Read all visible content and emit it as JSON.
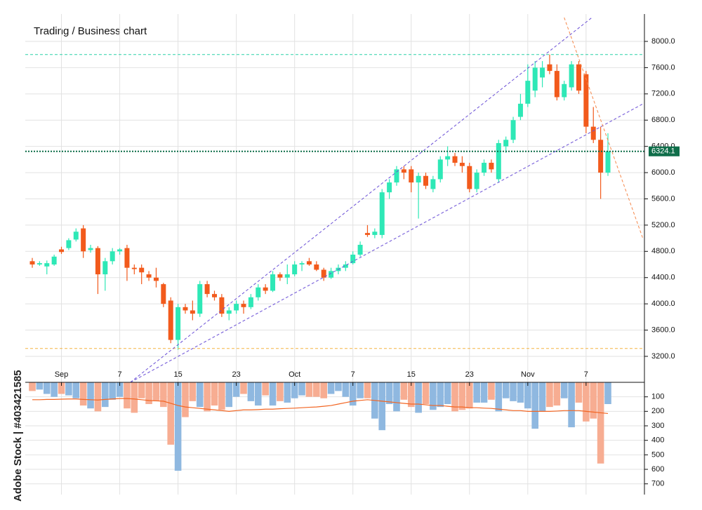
{
  "chart_data": {
    "type": "candlestick",
    "title": "Trading / Business chart",
    "watermark": "Adobe Stock | #403421585",
    "categories": [
      null,
      null,
      null,
      null,
      "Sep",
      null,
      null,
      null,
      null,
      null,
      null,
      null,
      "7",
      null,
      null,
      null,
      null,
      null,
      null,
      null,
      "15",
      null,
      null,
      null,
      null,
      null,
      null,
      null,
      "23",
      null,
      null,
      null,
      null,
      null,
      null,
      null,
      "Oct",
      null,
      null,
      null,
      null,
      null,
      null,
      null,
      "7",
      null,
      null,
      null,
      null,
      null,
      null,
      null,
      "15",
      null,
      null,
      null,
      null,
      null,
      null,
      null,
      "23",
      null,
      null,
      null,
      null,
      null,
      null,
      null,
      "Nov",
      null,
      null,
      null,
      null,
      null,
      null,
      null,
      "7",
      null,
      null,
      null
    ],
    "ohlc": [
      [
        4650,
        4700,
        4550,
        4600
      ],
      [
        4600,
        4650,
        4580,
        4620
      ],
      [
        4570,
        4660,
        4450,
        4620
      ],
      [
        4600,
        4750,
        4580,
        4720
      ],
      [
        4830,
        4870,
        4760,
        4790
      ],
      [
        4850,
        5000,
        4820,
        4970
      ],
      [
        4980,
        5150,
        4950,
        5100
      ],
      [
        5150,
        5200,
        4700,
        4800
      ],
      [
        4820,
        4900,
        4780,
        4850
      ],
      [
        4850,
        4880,
        4150,
        4450
      ],
      [
        4450,
        4700,
        4200,
        4650
      ],
      [
        4650,
        4850,
        4600,
        4800
      ],
      [
        4800,
        4850,
        4750,
        4830
      ],
      [
        4850,
        4900,
        4350,
        4550
      ],
      [
        4550,
        4600,
        4450,
        4530
      ],
      [
        4550,
        4600,
        4300,
        4480
      ],
      [
        4450,
        4500,
        4350,
        4400
      ],
      [
        4400,
        4550,
        4250,
        4350
      ],
      [
        4300,
        4320,
        3950,
        4000
      ],
      [
        4050,
        4100,
        3400,
        3450
      ],
      [
        3450,
        4000,
        3300,
        3950
      ],
      [
        3950,
        4000,
        3850,
        3900
      ],
      [
        3900,
        4050,
        3750,
        3850
      ],
      [
        3850,
        4350,
        3800,
        4300
      ],
      [
        4300,
        4350,
        4100,
        4150
      ],
      [
        4150,
        4200,
        4050,
        4100
      ],
      [
        4100,
        4150,
        3800,
        3850
      ],
      [
        3850,
        3950,
        3750,
        3900
      ],
      [
        3900,
        4050,
        3850,
        4000
      ],
      [
        4000,
        4050,
        3850,
        3950
      ],
      [
        3950,
        4150,
        3920,
        4100
      ],
      [
        4100,
        4300,
        4050,
        4250
      ],
      [
        4250,
        4300,
        4150,
        4200
      ],
      [
        4200,
        4500,
        4180,
        4450
      ],
      [
        4450,
        4480,
        4350,
        4400
      ],
      [
        4400,
        4600,
        4300,
        4450
      ],
      [
        4450,
        4650,
        4420,
        4600
      ],
      [
        4600,
        4650,
        4500,
        4620
      ],
      [
        4650,
        4700,
        4580,
        4600
      ],
      [
        4600,
        4650,
        4500,
        4520
      ],
      [
        4520,
        4550,
        4350,
        4400
      ],
      [
        4400,
        4550,
        4380,
        4500
      ],
      [
        4500,
        4600,
        4450,
        4550
      ],
      [
        4550,
        4650,
        4500,
        4600
      ],
      [
        4620,
        4800,
        4600,
        4750
      ],
      [
        4750,
        4950,
        4720,
        4900
      ],
      [
        5080,
        5200,
        5020,
        5050
      ],
      [
        5050,
        5150,
        5000,
        5100
      ],
      [
        5050,
        5750,
        5000,
        5700
      ],
      [
        5700,
        5900,
        5600,
        5850
      ],
      [
        5850,
        6100,
        5800,
        6050
      ],
      [
        6050,
        6100,
        5900,
        6000
      ],
      [
        6050,
        6100,
        5700,
        5850
      ],
      [
        5850,
        6000,
        5300,
        5950
      ],
      [
        5950,
        6000,
        5750,
        5800
      ],
      [
        5750,
        5950,
        5700,
        5900
      ],
      [
        5900,
        6250,
        5850,
        6200
      ],
      [
        6200,
        6400,
        6100,
        6250
      ],
      [
        6250,
        6300,
        6100,
        6150
      ],
      [
        6150,
        6250,
        6000,
        6100
      ],
      [
        6100,
        6150,
        5700,
        5750
      ],
      [
        5750,
        6050,
        5700,
        6000
      ],
      [
        6000,
        6200,
        5950,
        6150
      ],
      [
        6150,
        6200,
        6000,
        6050
      ],
      [
        5900,
        6500,
        5850,
        6450
      ],
      [
        6400,
        6550,
        6300,
        6500
      ],
      [
        6500,
        6850,
        6450,
        6800
      ],
      [
        6850,
        7200,
        6800,
        7050
      ],
      [
        7050,
        7650,
        7000,
        7400
      ],
      [
        7250,
        7700,
        7150,
        7600
      ],
      [
        7450,
        7700,
        7300,
        7600
      ],
      [
        7650,
        7800,
        7500,
        7550
      ],
      [
        7550,
        7650,
        7100,
        7150
      ],
      [
        7150,
        7400,
        7100,
        7350
      ],
      [
        7300,
        7700,
        7250,
        7650
      ],
      [
        7650,
        7700,
        7200,
        7250
      ],
      [
        7500,
        7550,
        6600,
        6700
      ],
      [
        6700,
        7000,
        6450,
        6500
      ],
      [
        6500,
        6700,
        5600,
        6000
      ],
      [
        6000,
        6600,
        5950,
        6324.1
      ]
    ],
    "up_color": "#2ee8b6",
    "down_color": "#f25a1c",
    "ylim": [
      2804,
      8417
    ],
    "yticks": [
      {
        "value": 3200,
        "label": "3200.0"
      },
      {
        "value": 3600,
        "label": "3600.0"
      },
      {
        "value": 4000,
        "label": "4000.0"
      },
      {
        "value": 4400,
        "label": "4400.0"
      },
      {
        "value": 4800,
        "label": "4800.0"
      },
      {
        "value": 5200,
        "label": "5200.0"
      },
      {
        "value": 5600,
        "label": "5600.0"
      },
      {
        "value": 6000,
        "label": "6000.0"
      },
      {
        "value": 6400,
        "label": "6400.0"
      },
      {
        "value": 6800,
        "label": "6800.0"
      },
      {
        "value": 7200,
        "label": "7200.0"
      },
      {
        "value": 7600,
        "label": "7600.0"
      },
      {
        "value": 8000,
        "label": "8000.0"
      }
    ],
    "grid": true,
    "hlines": [
      {
        "value": 7800,
        "color": "#2ad1a8",
        "style": "dashed"
      },
      {
        "value": 3320,
        "color": "#f5b342",
        "style": "dashed"
      },
      {
        "value": 6324.1,
        "color": "#0a6b47",
        "style": "dotted",
        "label_color": "#0f6e4a"
      }
    ],
    "trendlines": [
      {
        "from": [
          13.46,
          2804
        ],
        "to": [
          76.8,
          8363
        ],
        "color": "#6a4fd6"
      },
      {
        "from": [
          13.46,
          2804
        ],
        "to": [
          83.8,
          7048
        ],
        "color": "#6a4fd6"
      },
      {
        "from": [
          73,
          8363
        ],
        "to": [
          83.8,
          4996
        ],
        "color": "#f5874a"
      }
    ],
    "volume": [
      60,
      50,
      80,
      100,
      80,
      90,
      110,
      160,
      180,
      200,
      170,
      120,
      100,
      180,
      210,
      110,
      150,
      130,
      170,
      430,
      610,
      240,
      130,
      170,
      200,
      160,
      190,
      170,
      100,
      80,
      130,
      160,
      90,
      160,
      130,
      140,
      110,
      90,
      100,
      100,
      110,
      80,
      60,
      100,
      160,
      110,
      110,
      250,
      330,
      150,
      200,
      120,
      170,
      210,
      150,
      190,
      170,
      150,
      200,
      190,
      180,
      140,
      140,
      120,
      200,
      110,
      130,
      140,
      180,
      320,
      200,
      170,
      160,
      110,
      310,
      140,
      270,
      250,
      560,
      150
    ],
    "volume_up_color": "#8fb8e0",
    "volume_down_color": "#f7ad92",
    "volume_ma": [
      120,
      120,
      118,
      118,
      116,
      115,
      115,
      118,
      120,
      122,
      118,
      115,
      112,
      112,
      115,
      120,
      125,
      128,
      130,
      145,
      160,
      170,
      175,
      180,
      185,
      190,
      195,
      200,
      195,
      190,
      190,
      188,
      185,
      185,
      182,
      180,
      178,
      175,
      172,
      170,
      165,
      160,
      150,
      140,
      130,
      125,
      120,
      125,
      130,
      135,
      140,
      145,
      150,
      150,
      155,
      160,
      160,
      165,
      170,
      170,
      175,
      175,
      178,
      180,
      185,
      190,
      195,
      195,
      200,
      200,
      200,
      200,
      198,
      195,
      195,
      195,
      200,
      205,
      210,
      215
    ],
    "volume_ma_color": "#f26522",
    "volume_ylim": [
      0,
      774
    ],
    "volume_yticks": [
      100,
      200,
      300,
      400,
      500,
      600,
      700
    ]
  }
}
